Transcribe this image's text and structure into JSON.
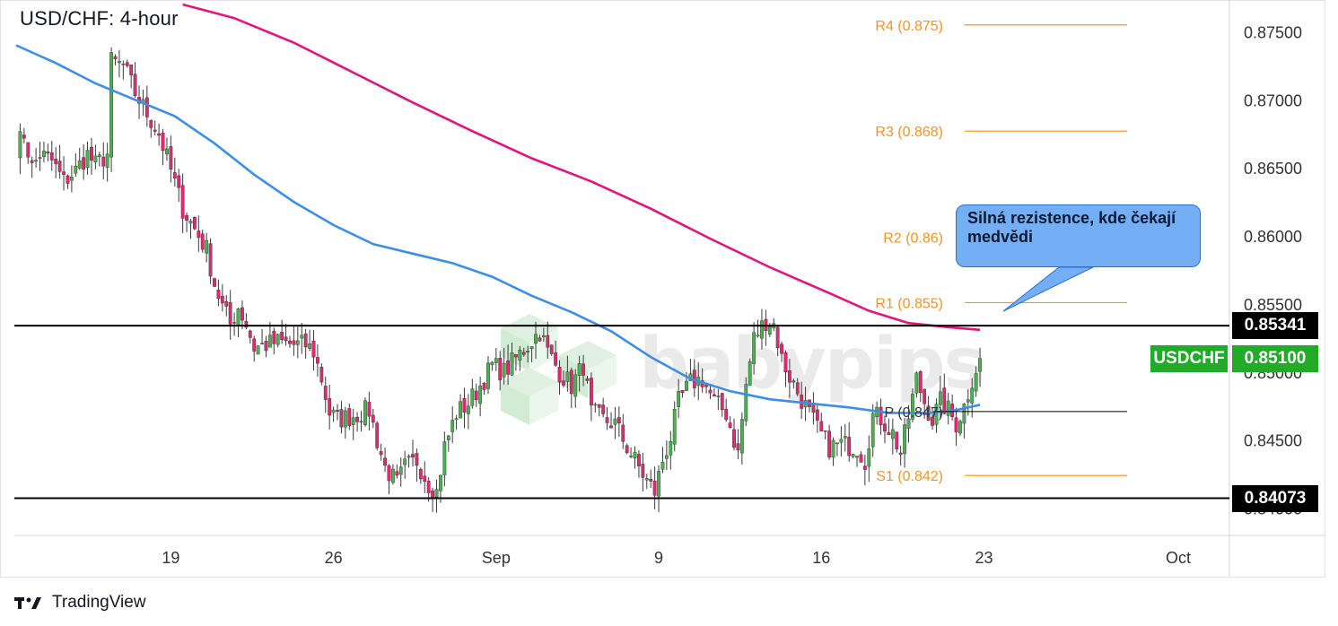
{
  "header": {
    "title": "USD/CHF: 4-hour"
  },
  "footer": {
    "brand": "TradingView"
  },
  "watermark": {
    "text": "babypips"
  },
  "callout": {
    "text": "Silná rezistence, kde čekají medvědi"
  },
  "symbol_tag": {
    "label": "USDCHF",
    "price": "0.85100",
    "color": "#22ab28"
  },
  "levels": {
    "resistance": {
      "value": 0.85341,
      "label": "0.85341"
    },
    "support": {
      "value": 0.84073,
      "label": "0.84073"
    }
  },
  "pivots": [
    {
      "name": "R4",
      "label": "R4 (0.875)",
      "value": 0.8755
    },
    {
      "name": "R3",
      "label": "R3 (0.868)",
      "value": 0.8677
    },
    {
      "name": "R2",
      "label": "R2 (0.86)",
      "value": 0.8599
    },
    {
      "name": "R1",
      "label": "R1 (0.855)",
      "value": 0.8551
    },
    {
      "name": "P",
      "label": "P (0.847)",
      "value": 0.8471
    },
    {
      "name": "S1",
      "label": "S1 (0.842)",
      "value": 0.8424
    }
  ],
  "colors": {
    "up": "#4caf50",
    "down": "#e0296f",
    "ma_fast": "#3d8fe6",
    "ma_slow": "#e3157a",
    "pivot": "#f7931e",
    "level": "#000000"
  },
  "chart_data": {
    "type": "candlestick",
    "title": "USD/CHF: 4-hour",
    "ylim": [
      0.838,
      0.877
    ],
    "y_ticks": [
      "0.87500",
      "0.87000",
      "0.86500",
      "0.86000",
      "0.85500",
      "0.85000",
      "0.84500",
      "0.84000"
    ],
    "y_tick_values": [
      0.875,
      0.87,
      0.865,
      0.86,
      0.855,
      0.85,
      0.845,
      0.84
    ],
    "x_ticks": [
      "19",
      "26",
      "Sep",
      "9",
      "16",
      "23",
      "Oct"
    ],
    "x_tick_index": [
      39,
      80,
      121,
      162,
      203,
      244,
      293
    ],
    "series": [
      {
        "name": "candles",
        "note": "OHLC read off chart",
        "count": 243
      }
    ],
    "price_path": [
      [
        0,
        0.8665
      ],
      [
        2,
        0.8675
      ],
      [
        4,
        0.865
      ],
      [
        6,
        0.866
      ],
      [
        9,
        0.8655
      ],
      [
        12,
        0.864
      ],
      [
        15,
        0.8648
      ],
      [
        18,
        0.866
      ],
      [
        20,
        0.8652
      ],
      [
        23,
        0.866
      ],
      [
        24,
        0.8728
      ],
      [
        27,
        0.8725
      ],
      [
        30,
        0.8705
      ],
      [
        33,
        0.869
      ],
      [
        36,
        0.8675
      ],
      [
        39,
        0.8648
      ],
      [
        42,
        0.862
      ],
      [
        45,
        0.8605
      ],
      [
        48,
        0.859
      ],
      [
        50,
        0.8565
      ],
      [
        52,
        0.8548
      ],
      [
        54,
        0.8535
      ],
      [
        56,
        0.8548
      ],
      [
        58,
        0.8535
      ],
      [
        60,
        0.8518
      ],
      [
        63,
        0.852
      ],
      [
        66,
        0.8522
      ],
      [
        70,
        0.852
      ],
      [
        73,
        0.852
      ],
      [
        75,
        0.8515
      ],
      [
        77,
        0.8495
      ],
      [
        79,
        0.847
      ],
      [
        81,
        0.8465
      ],
      [
        85,
        0.8468
      ],
      [
        89,
        0.8472
      ],
      [
        91,
        0.845
      ],
      [
        93,
        0.843
      ],
      [
        96,
        0.8418
      ],
      [
        98,
        0.843
      ],
      [
        101,
        0.8435
      ],
      [
        104,
        0.8418
      ],
      [
        106,
        0.8412
      ],
      [
        108,
        0.8445
      ],
      [
        111,
        0.847
      ],
      [
        114,
        0.8477
      ],
      [
        117,
        0.849
      ],
      [
        120,
        0.8505
      ],
      [
        123,
        0.85
      ],
      [
        126,
        0.851
      ],
      [
        129,
        0.852
      ],
      [
        132,
        0.853
      ],
      [
        134,
        0.8515
      ],
      [
        137,
        0.85
      ],
      [
        140,
        0.849
      ],
      [
        143,
        0.8505
      ],
      [
        145,
        0.847
      ],
      [
        148,
        0.8465
      ],
      [
        151,
        0.8462
      ],
      [
        154,
        0.8445
      ],
      [
        157,
        0.843
      ],
      [
        159,
        0.842
      ],
      [
        161,
        0.8412
      ],
      [
        163,
        0.8435
      ],
      [
        165,
        0.8452
      ],
      [
        167,
        0.8478
      ],
      [
        170,
        0.8492
      ],
      [
        173,
        0.8495
      ],
      [
        176,
        0.8478
      ],
      [
        179,
        0.847
      ],
      [
        182,
        0.844
      ],
      [
        184,
        0.849
      ],
      [
        186,
        0.8525
      ],
      [
        189,
        0.8538
      ],
      [
        191,
        0.8535
      ],
      [
        193,
        0.851
      ],
      [
        196,
        0.849
      ],
      [
        199,
        0.8475
      ],
      [
        202,
        0.8458
      ],
      [
        205,
        0.8445
      ],
      [
        208,
        0.8447
      ],
      [
        212,
        0.8445
      ],
      [
        214,
        0.8435
      ],
      [
        216,
        0.8468
      ],
      [
        218,
        0.8466
      ],
      [
        221,
        0.8455
      ],
      [
        223,
        0.844
      ],
      [
        225,
        0.8467
      ],
      [
        227,
        0.8495
      ],
      [
        229,
        0.8478
      ],
      [
        231,
        0.8465
      ],
      [
        233,
        0.8478
      ],
      [
        235,
        0.8472
      ],
      [
        237,
        0.8462
      ],
      [
        239,
        0.8475
      ],
      [
        241,
        0.8495
      ],
      [
        243,
        0.851
      ]
    ],
    "ma_fast_path": [
      [
        0,
        0.874
      ],
      [
        10,
        0.8727
      ],
      [
        20,
        0.8712
      ],
      [
        30,
        0.87
      ],
      [
        40,
        0.8688
      ],
      [
        50,
        0.8668
      ],
      [
        60,
        0.8645
      ],
      [
        70,
        0.8625
      ],
      [
        80,
        0.8608
      ],
      [
        90,
        0.8594
      ],
      [
        100,
        0.8587
      ],
      [
        110,
        0.858
      ],
      [
        120,
        0.857
      ],
      [
        130,
        0.8556
      ],
      [
        140,
        0.8544
      ],
      [
        150,
        0.853
      ],
      [
        160,
        0.8511
      ],
      [
        170,
        0.8495
      ],
      [
        180,
        0.8486
      ],
      [
        190,
        0.848
      ],
      [
        200,
        0.8477
      ],
      [
        210,
        0.8474
      ],
      [
        220,
        0.847
      ],
      [
        230,
        0.847
      ],
      [
        237,
        0.8472
      ],
      [
        243,
        0.8476
      ]
    ],
    "ma_slow_path": [
      [
        42,
        0.877
      ],
      [
        55,
        0.876
      ],
      [
        70,
        0.8742
      ],
      [
        85,
        0.872
      ],
      [
        100,
        0.8698
      ],
      [
        115,
        0.8677
      ],
      [
        130,
        0.8657
      ],
      [
        145,
        0.864
      ],
      [
        160,
        0.862
      ],
      [
        175,
        0.8598
      ],
      [
        190,
        0.8577
      ],
      [
        205,
        0.8558
      ],
      [
        215,
        0.8545
      ],
      [
        225,
        0.8536
      ],
      [
        235,
        0.8533
      ],
      [
        243,
        0.8531
      ]
    ]
  }
}
